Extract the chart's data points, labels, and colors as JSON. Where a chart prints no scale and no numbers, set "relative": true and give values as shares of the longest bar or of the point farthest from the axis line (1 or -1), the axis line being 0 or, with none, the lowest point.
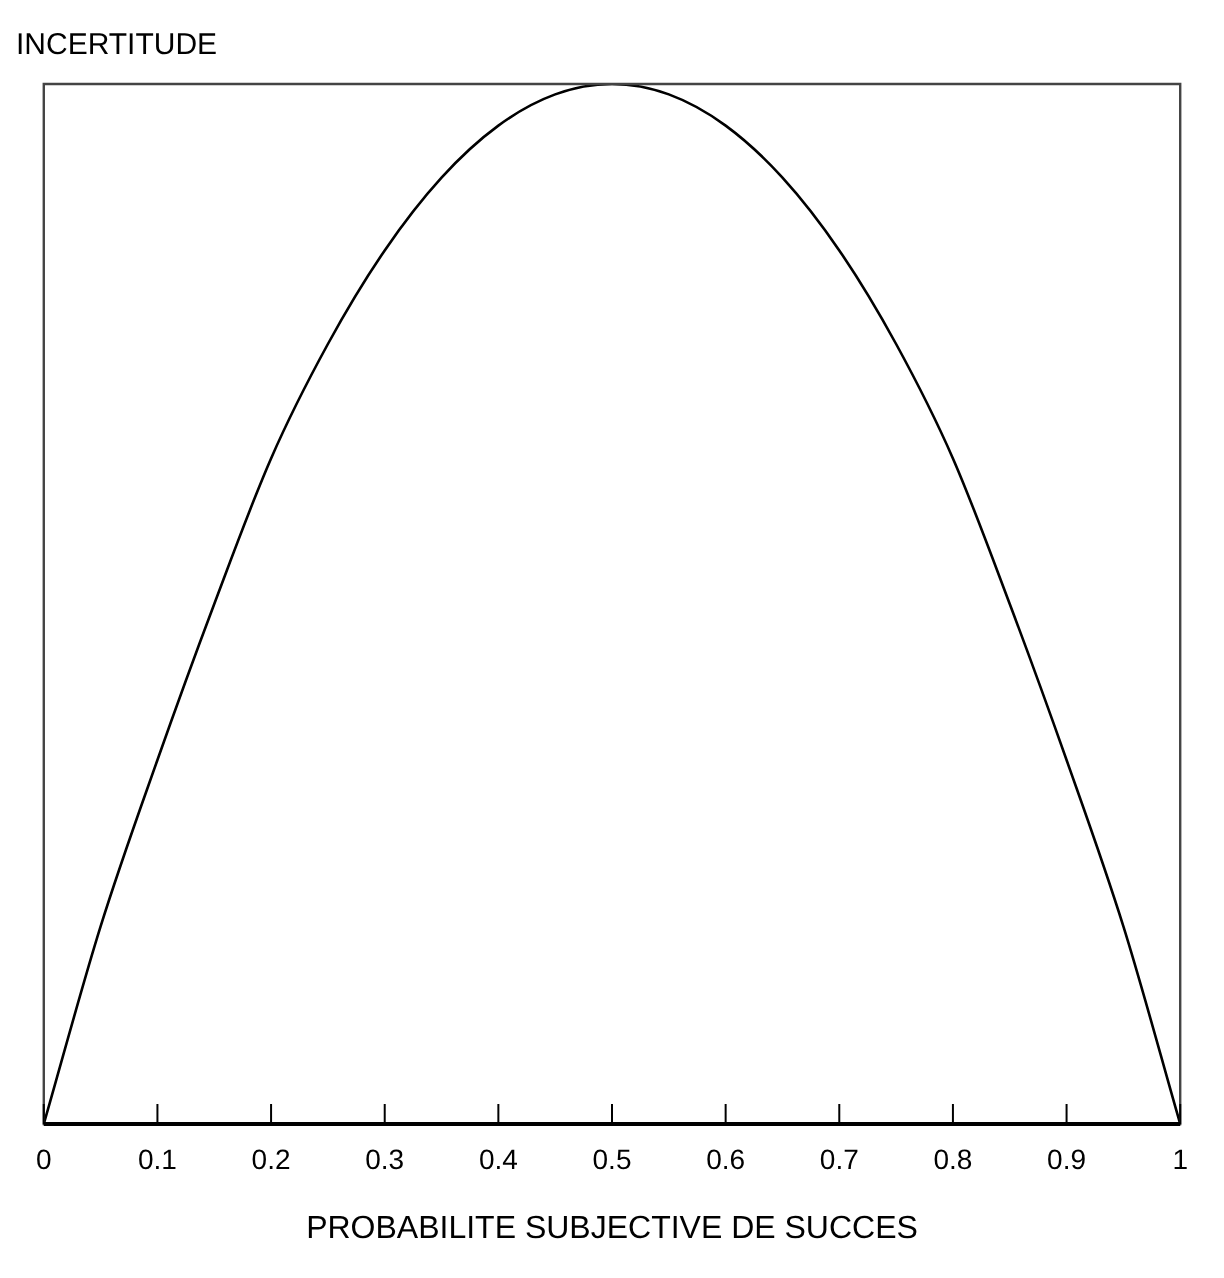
{
  "chart_data": {
    "type": "line",
    "ylabel": "INCERTITUDE",
    "xlabel": "PROBABILITE SUBJECTIVE DE SUCCES",
    "relative": true,
    "x": [
      0,
      0.05,
      0.1,
      0.15,
      0.2,
      0.25,
      0.3,
      0.35,
      0.4,
      0.45,
      0.5,
      0.55,
      0.6,
      0.65,
      0.7,
      0.75,
      0.8,
      0.85,
      0.9,
      0.95,
      1
    ],
    "series": [
      {
        "color": "#000000",
        "values": [
          0,
          0.19,
          0.35,
          0.5,
          0.64,
          0.75,
          0.84,
          0.91,
          0.96,
          0.99,
          1,
          0.99,
          0.96,
          0.91,
          0.84,
          0.75,
          0.64,
          0.5,
          0.35,
          0.19,
          0
        ]
      }
    ],
    "xlim": [
      0,
      1
    ],
    "xticks": [
      0,
      0.1,
      0.2,
      0.3,
      0.4,
      0.5,
      0.6,
      0.7,
      0.8,
      0.9,
      1
    ],
    "grid": false,
    "legend": false,
    "marker": "none",
    "line_style": "solid"
  }
}
